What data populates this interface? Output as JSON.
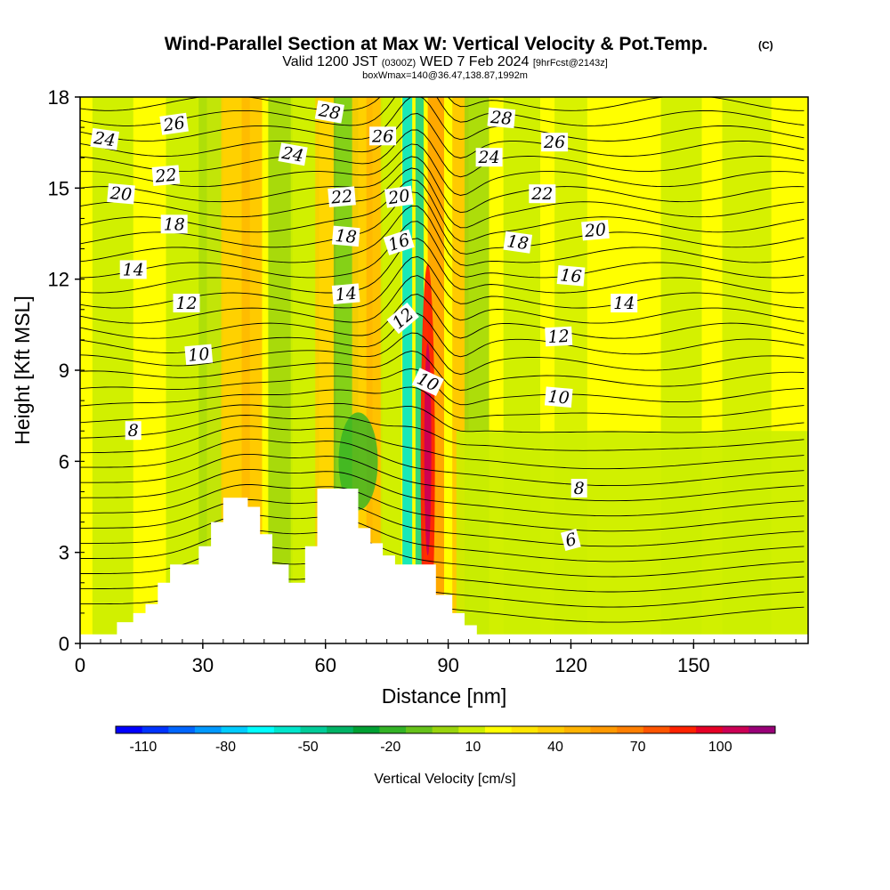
{
  "title": "Wind-Parallel Section at Max W: Vertical Velocity & Pot.Temp.",
  "copyright": "(C)",
  "valid_pre": "Valid 1200 JST",
  "valid_utc": "(0300Z)",
  "valid_post": "WED 7 Feb 2024",
  "forecast": "[9hrFcst@2143z]",
  "box_info": "boxWmax=140@36.47,138.87,1992m",
  "chart_data": {
    "type": "heatmap",
    "xlabel": "Distance [nm]",
    "ylabel": "Height [Kft MSL]",
    "xlim": [
      0,
      178
    ],
    "ylim": [
      0,
      18
    ],
    "x_ticks": [
      "0",
      "30",
      "60",
      "90",
      "120",
      "150"
    ],
    "y_ticks": [
      "0",
      "3",
      "6",
      "9",
      "12",
      "15",
      "18"
    ],
    "colorbar": {
      "label": "Vertical Velocity [cm/s]",
      "tick_labels": [
        "-110",
        "-80",
        "-50",
        "-20",
        "10",
        "40",
        "70",
        "100"
      ],
      "min": -120,
      "max": 120,
      "step": 10,
      "colors": [
        "#0000ff",
        "#0033ff",
        "#0066ff",
        "#0099ff",
        "#00ccff",
        "#00ffff",
        "#00e6cc",
        "#00cc99",
        "#00b366",
        "#00a033",
        "#33b326",
        "#66c21a",
        "#99d40d",
        "#ccee00",
        "#ffff00",
        "#ffe600",
        "#ffcc00",
        "#ffb300",
        "#ff9900",
        "#ff7f00",
        "#ff5500",
        "#ff2200",
        "#e60026",
        "#cc0055",
        "#990077"
      ]
    },
    "terrain": [
      [
        0,
        0.3
      ],
      [
        9,
        0.3
      ],
      [
        9,
        0.7
      ],
      [
        13,
        0.7
      ],
      [
        13,
        1.0
      ],
      [
        16,
        1.0
      ],
      [
        16,
        1.3
      ],
      [
        19,
        1.3
      ],
      [
        19,
        2.0
      ],
      [
        22,
        2.0
      ],
      [
        22,
        2.6
      ],
      [
        29,
        2.6
      ],
      [
        29,
        3.2
      ],
      [
        32,
        3.2
      ],
      [
        32,
        4.0
      ],
      [
        35,
        4.0
      ],
      [
        35,
        4.8
      ],
      [
        41,
        4.8
      ],
      [
        41,
        4.5
      ],
      [
        44,
        4.5
      ],
      [
        44,
        3.6
      ],
      [
        47,
        3.6
      ],
      [
        47,
        2.6
      ],
      [
        51,
        2.6
      ],
      [
        51,
        2.0
      ],
      [
        55,
        2.0
      ],
      [
        55,
        3.2
      ],
      [
        58,
        3.2
      ],
      [
        58,
        5.1
      ],
      [
        68,
        5.1
      ],
      [
        68,
        3.8
      ],
      [
        71,
        3.8
      ],
      [
        71,
        3.3
      ],
      [
        74,
        3.3
      ],
      [
        74,
        2.9
      ],
      [
        77,
        2.9
      ],
      [
        77,
        2.6
      ],
      [
        87,
        2.6
      ],
      [
        87,
        1.6
      ],
      [
        91,
        1.6
      ],
      [
        91,
        1.0
      ],
      [
        94,
        1.0
      ],
      [
        94,
        0.6
      ],
      [
        97,
        0.6
      ],
      [
        97,
        0.3
      ],
      [
        178,
        0.3
      ]
    ],
    "theta_levels": [
      "6",
      "8",
      "10",
      "12",
      "14",
      "16",
      "18",
      "20",
      "22",
      "24",
      "26",
      "28"
    ],
    "contour_labels": [
      {
        "text": "26",
        "x": 23,
        "y": 17.1,
        "rot": -8
      },
      {
        "text": "24",
        "x": 6,
        "y": 16.6,
        "rot": 8
      },
      {
        "text": "22",
        "x": 21,
        "y": 15.4,
        "rot": -5
      },
      {
        "text": "20",
        "x": 10,
        "y": 14.8,
        "rot": 5
      },
      {
        "text": "18",
        "x": 23,
        "y": 13.8,
        "rot": 0
      },
      {
        "text": "14",
        "x": 13,
        "y": 12.3,
        "rot": 0
      },
      {
        "text": "12",
        "x": 26,
        "y": 11.2,
        "rot": 0
      },
      {
        "text": "10",
        "x": 29,
        "y": 9.5,
        "rot": -5
      },
      {
        "text": "8",
        "x": 13,
        "y": 7.0,
        "rot": 0
      },
      {
        "text": "28",
        "x": 61,
        "y": 17.5,
        "rot": 10
      },
      {
        "text": "26",
        "x": 74,
        "y": 16.7,
        "rot": 0
      },
      {
        "text": "24",
        "x": 52,
        "y": 16.1,
        "rot": 10
      },
      {
        "text": "22",
        "x": 64,
        "y": 14.7,
        "rot": -5
      },
      {
        "text": "20",
        "x": 78,
        "y": 14.7,
        "rot": -8
      },
      {
        "text": "18",
        "x": 65,
        "y": 13.4,
        "rot": 5
      },
      {
        "text": "16",
        "x": 78,
        "y": 13.2,
        "rot": -18
      },
      {
        "text": "14",
        "x": 65,
        "y": 11.5,
        "rot": -5
      },
      {
        "text": "12",
        "x": 79,
        "y": 10.7,
        "rot": -40
      },
      {
        "text": "10",
        "x": 85,
        "y": 8.6,
        "rot": 25
      },
      {
        "text": "28",
        "x": 103,
        "y": 17.3,
        "rot": 5
      },
      {
        "text": "26",
        "x": 116,
        "y": 16.5,
        "rot": 0
      },
      {
        "text": "24",
        "x": 100,
        "y": 16.0,
        "rot": 0
      },
      {
        "text": "22",
        "x": 113,
        "y": 14.8,
        "rot": 0
      },
      {
        "text": "20",
        "x": 126,
        "y": 13.6,
        "rot": -5
      },
      {
        "text": "18",
        "x": 107,
        "y": 13.2,
        "rot": 8
      },
      {
        "text": "16",
        "x": 120,
        "y": 12.1,
        "rot": 5
      },
      {
        "text": "14",
        "x": 133,
        "y": 11.2,
        "rot": 0
      },
      {
        "text": "12",
        "x": 117,
        "y": 10.1,
        "rot": -3
      },
      {
        "text": "10",
        "x": 117,
        "y": 8.1,
        "rot": 5
      },
      {
        "text": "8",
        "x": 122,
        "y": 5.1,
        "rot": 0
      },
      {
        "text": "6",
        "x": 120,
        "y": 3.4,
        "rot": -15
      }
    ]
  }
}
